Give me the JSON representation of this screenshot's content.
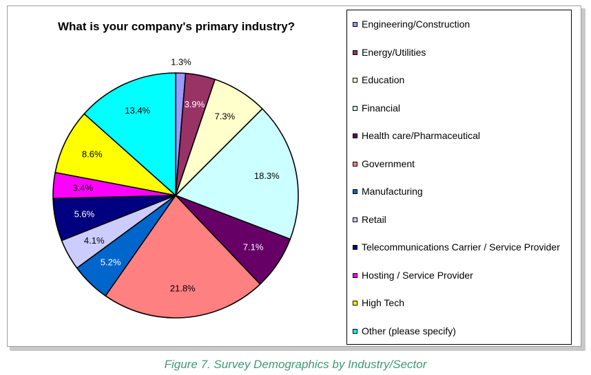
{
  "chart_data": {
    "type": "pie",
    "title": "What is your company's primary industry?",
    "slices": [
      {
        "label": "Engineering/Construction",
        "value": 1.3,
        "display": "1.3%",
        "color": "#9999ff"
      },
      {
        "label": "Energy/Utilities",
        "value": 3.9,
        "display": "3.9%",
        "color": "#993366"
      },
      {
        "label": "Education",
        "value": 7.3,
        "display": "7.3%",
        "color": "#ffffcc"
      },
      {
        "label": "Financial",
        "value": 18.3,
        "display": "18.3%",
        "color": "#ccffff"
      },
      {
        "label": "Health care/Pharmaceutical",
        "value": 7.1,
        "display": "7.1%",
        "color": "#660066"
      },
      {
        "label": "Government",
        "value": 21.8,
        "display": "21.8%",
        "color": "#ff8080"
      },
      {
        "label": "Manufacturing",
        "value": 5.2,
        "display": "5.2%",
        "color": "#0066cc"
      },
      {
        "label": "Retail",
        "value": 4.1,
        "display": "4.1%",
        "color": "#ccccff"
      },
      {
        "label": "Telecommunications Carrier / Service Provider",
        "value": 5.6,
        "display": "5.6%",
        "color": "#000080"
      },
      {
        "label": "Hosting / Service Provider",
        "value": 3.4,
        "display": "3.4%",
        "color": "#ff00ff"
      },
      {
        "label": "High Tech",
        "value": 8.6,
        "display": "8.6%",
        "color": "#ffff00"
      },
      {
        "label": "Other (please specify)",
        "value": 13.4,
        "display": "13.4%",
        "color": "#00ffff"
      }
    ],
    "legend_position": "right"
  },
  "caption": "Figure 7. Survey Demographics by Industry/Sector"
}
